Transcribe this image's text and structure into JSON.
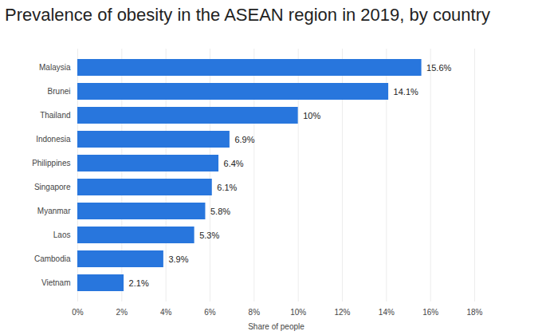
{
  "chart_data": {
    "type": "bar",
    "orientation": "horizontal",
    "title": "Prevalence of obesity in the ASEAN region in 2019, by country",
    "categories": [
      "Malaysia",
      "Brunei",
      "Thailand",
      "Indonesia",
      "Philippines",
      "Singapore",
      "Myanmar",
      "Laos",
      "Cambodia",
      "Vietnam"
    ],
    "values": [
      15.6,
      14.1,
      10,
      6.9,
      6.4,
      6.1,
      5.8,
      5.3,
      3.9,
      2.1
    ],
    "value_labels": [
      "15.6%",
      "14.1%",
      "10%",
      "6.9%",
      "6.4%",
      "6.1%",
      "5.8%",
      "5.3%",
      "3.9%",
      "2.1%"
    ],
    "data_labels": true,
    "color": "#2876dd",
    "xlabel": "Share of people",
    "xlim": [
      0,
      18
    ],
    "xticks": [
      {
        "value": 0,
        "label": "0%"
      },
      {
        "value": 2,
        "label": "2%"
      },
      {
        "value": 4,
        "label": "4%"
      },
      {
        "value": 6,
        "label": "6%"
      },
      {
        "value": 8,
        "label": "8%"
      },
      {
        "value": 10,
        "label": "10%"
      },
      {
        "value": 12,
        "label": "12%"
      },
      {
        "value": 14,
        "label": "14%"
      },
      {
        "value": 16,
        "label": "16%"
      },
      {
        "value": 18,
        "label": "18%"
      }
    ],
    "grid": true
  }
}
